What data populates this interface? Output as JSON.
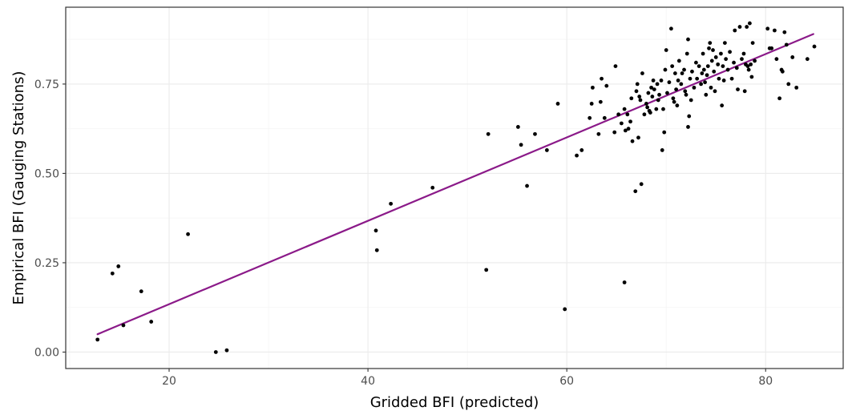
{
  "chart_data": {
    "type": "scatter",
    "title": "",
    "xlabel": "Gridded BFI (predicted)",
    "ylabel": "Empirical BFI (Gauging Stations)",
    "xlim": [
      9.6,
      87.8
    ],
    "ylim": [
      -0.046,
      0.965
    ],
    "x_ticks": [
      20,
      40,
      60,
      80
    ],
    "x_tick_labels": [
      "20",
      "40",
      "60",
      "80"
    ],
    "y_ticks": [
      0,
      0.25,
      0.5,
      0.75
    ],
    "y_tick_labels": [
      "0.00",
      "0.25",
      "0.50",
      "0.75"
    ],
    "grid": true,
    "colors": {
      "points": "#000000",
      "fit_line": "#8b1a89",
      "grid_major": "#ebebeb",
      "grid_minor": "#f5f5f5",
      "panel_border": "#333333"
    },
    "fit_line": {
      "x": [
        12.8,
        84.8
      ],
      "y": [
        0.05,
        0.89
      ]
    },
    "points": [
      [
        12.8,
        0.035
      ],
      [
        14.3,
        0.22
      ],
      [
        14.9,
        0.24
      ],
      [
        15.4,
        0.075
      ],
      [
        17.2,
        0.17
      ],
      [
        18.2,
        0.085
      ],
      [
        21.9,
        0.33
      ],
      [
        24.7,
        0.0
      ],
      [
        25.8,
        0.005
      ],
      [
        40.8,
        0.34
      ],
      [
        40.9,
        0.285
      ],
      [
        42.3,
        0.415
      ],
      [
        46.5,
        0.46
      ],
      [
        51.9,
        0.23
      ],
      [
        52.1,
        0.61
      ],
      [
        55.1,
        0.63
      ],
      [
        55.4,
        0.58
      ],
      [
        56.0,
        0.465
      ],
      [
        56.8,
        0.61
      ],
      [
        58.0,
        0.565
      ],
      [
        59.1,
        0.695
      ],
      [
        59.8,
        0.12
      ],
      [
        61.0,
        0.55
      ],
      [
        61.5,
        0.565
      ],
      [
        62.3,
        0.655
      ],
      [
        62.5,
        0.695
      ],
      [
        62.6,
        0.74
      ],
      [
        63.2,
        0.61
      ],
      [
        63.4,
        0.7
      ],
      [
        63.5,
        0.765
      ],
      [
        63.8,
        0.655
      ],
      [
        64.0,
        0.745
      ],
      [
        64.8,
        0.615
      ],
      [
        64.9,
        0.8
      ],
      [
        65.2,
        0.665
      ],
      [
        65.5,
        0.64
      ],
      [
        65.8,
        0.195
      ],
      [
        65.8,
        0.68
      ],
      [
        65.9,
        0.62
      ],
      [
        66.1,
        0.665
      ],
      [
        66.2,
        0.625
      ],
      [
        66.4,
        0.645
      ],
      [
        66.5,
        0.71
      ],
      [
        66.6,
        0.59
      ],
      [
        66.9,
        0.45
      ],
      [
        67.0,
        0.73
      ],
      [
        67.1,
        0.75
      ],
      [
        67.2,
        0.6
      ],
      [
        67.3,
        0.715
      ],
      [
        67.4,
        0.705
      ],
      [
        67.5,
        0.47
      ],
      [
        67.6,
        0.78
      ],
      [
        67.8,
        0.665
      ],
      [
        68.0,
        0.695
      ],
      [
        68.1,
        0.685
      ],
      [
        68.2,
        0.725
      ],
      [
        68.3,
        0.675
      ],
      [
        68.4,
        0.67
      ],
      [
        68.5,
        0.74
      ],
      [
        68.6,
        0.715
      ],
      [
        68.7,
        0.76
      ],
      [
        68.8,
        0.735
      ],
      [
        69.0,
        0.68
      ],
      [
        69.1,
        0.75
      ],
      [
        69.2,
        0.705
      ],
      [
        69.3,
        0.72
      ],
      [
        69.5,
        0.76
      ],
      [
        69.6,
        0.565
      ],
      [
        69.7,
        0.68
      ],
      [
        69.8,
        0.615
      ],
      [
        69.9,
        0.79
      ],
      [
        70.0,
        0.845
      ],
      [
        70.1,
        0.725
      ],
      [
        70.3,
        0.755
      ],
      [
        70.5,
        0.905
      ],
      [
        70.6,
        0.8
      ],
      [
        70.7,
        0.71
      ],
      [
        70.8,
        0.7
      ],
      [
        70.9,
        0.78
      ],
      [
        71.0,
        0.735
      ],
      [
        71.1,
        0.69
      ],
      [
        71.2,
        0.76
      ],
      [
        71.3,
        0.815
      ],
      [
        71.5,
        0.75
      ],
      [
        71.6,
        0.78
      ],
      [
        71.8,
        0.79
      ],
      [
        71.9,
        0.73
      ],
      [
        72.0,
        0.72
      ],
      [
        72.1,
        0.835
      ],
      [
        72.2,
        0.875
      ],
      [
        72.2,
        0.63
      ],
      [
        72.3,
        0.66
      ],
      [
        72.4,
        0.765
      ],
      [
        72.5,
        0.705
      ],
      [
        72.6,
        0.785
      ],
      [
        72.8,
        0.74
      ],
      [
        73.0,
        0.81
      ],
      [
        73.1,
        0.765
      ],
      [
        73.3,
        0.8
      ],
      [
        73.5,
        0.75
      ],
      [
        73.6,
        0.78
      ],
      [
        73.7,
        0.835
      ],
      [
        73.8,
        0.79
      ],
      [
        73.9,
        0.755
      ],
      [
        74.0,
        0.72
      ],
      [
        74.1,
        0.775
      ],
      [
        74.2,
        0.8
      ],
      [
        74.3,
        0.85
      ],
      [
        74.4,
        0.865
      ],
      [
        74.5,
        0.74
      ],
      [
        74.6,
        0.815
      ],
      [
        74.7,
        0.845
      ],
      [
        74.8,
        0.785
      ],
      [
        74.9,
        0.73
      ],
      [
        75.0,
        0.825
      ],
      [
        75.2,
        0.805
      ],
      [
        75.3,
        0.765
      ],
      [
        75.5,
        0.835
      ],
      [
        75.6,
        0.69
      ],
      [
        75.7,
        0.8
      ],
      [
        75.8,
        0.76
      ],
      [
        75.9,
        0.865
      ],
      [
        76.0,
        0.82
      ],
      [
        76.2,
        0.79
      ],
      [
        76.4,
        0.84
      ],
      [
        76.6,
        0.765
      ],
      [
        76.8,
        0.81
      ],
      [
        76.9,
        0.9
      ],
      [
        77.1,
        0.795
      ],
      [
        77.2,
        0.735
      ],
      [
        77.4,
        0.91
      ],
      [
        77.6,
        0.82
      ],
      [
        77.8,
        0.835
      ],
      [
        77.9,
        0.73
      ],
      [
        78.0,
        0.805
      ],
      [
        78.1,
        0.91
      ],
      [
        78.2,
        0.8
      ],
      [
        78.3,
        0.79
      ],
      [
        78.4,
        0.92
      ],
      [
        78.5,
        0.805
      ],
      [
        78.6,
        0.77
      ],
      [
        78.7,
        0.865
      ],
      [
        78.9,
        0.815
      ],
      [
        80.2,
        0.905
      ],
      [
        80.4,
        0.85
      ],
      [
        80.6,
        0.85
      ],
      [
        80.9,
        0.9
      ],
      [
        81.1,
        0.82
      ],
      [
        81.4,
        0.71
      ],
      [
        81.6,
        0.79
      ],
      [
        81.7,
        0.785
      ],
      [
        81.9,
        0.895
      ],
      [
        82.1,
        0.86
      ],
      [
        82.3,
        0.75
      ],
      [
        82.7,
        0.825
      ],
      [
        83.1,
        0.74
      ],
      [
        84.2,
        0.82
      ],
      [
        84.9,
        0.855
      ]
    ]
  }
}
